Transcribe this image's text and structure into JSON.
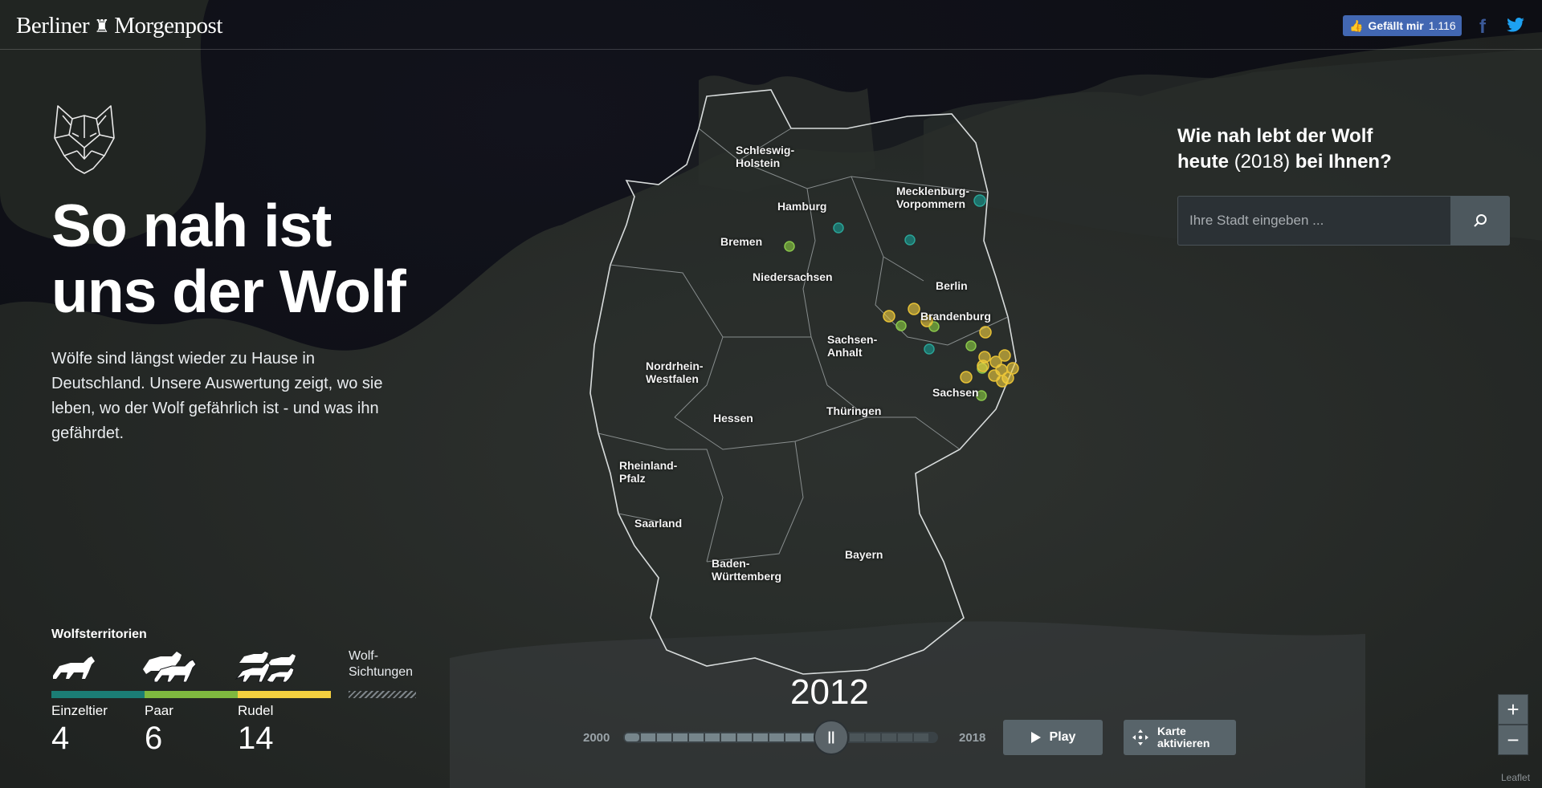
{
  "header": {
    "brand": "Berliner Morgenpost",
    "brand_left": "Berliner",
    "brand_right": "Morgenpost",
    "fb_like_label": "Gefällt mir",
    "fb_like_count": "1.116",
    "facebook_icon": "facebook-icon",
    "twitter_icon": "twitter-icon"
  },
  "intro": {
    "headline_line1": "So nah ist",
    "headline_line2": "uns der Wolf",
    "text": "Wölfe sind längst wieder zu Hause in Deutschland. Unsere Auswertung zeigt, wo sie leben, wo der Wolf gefährlich ist - und was ihn gefährdet."
  },
  "search": {
    "title_part1": "Wie nah lebt der Wolf",
    "title_part2": "heute",
    "title_year": "(2018)",
    "title_part3": "bei Ihnen?",
    "placeholder": "Ihre Stadt eingeben ..."
  },
  "map": {
    "states": [
      {
        "name": "Schleswig-\nHolstein"
      },
      {
        "name": "Hamburg"
      },
      {
        "name": "Mecklenburg-\nVorpommern"
      },
      {
        "name": "Bremen"
      },
      {
        "name": "Niedersachsen"
      },
      {
        "name": "Berlin"
      },
      {
        "name": "Brandenburg"
      },
      {
        "name": "Sachsen-\nAnhalt"
      },
      {
        "name": "Nordrhein-\nWestfalen"
      },
      {
        "name": "Sachsen"
      },
      {
        "name": "Hessen"
      },
      {
        "name": "Thüringen"
      },
      {
        "name": "Rheinland-\nPfalz"
      },
      {
        "name": "Saarland"
      },
      {
        "name": "Baden-\nWürttemberg"
      },
      {
        "name": "Bayern"
      }
    ],
    "colors": {
      "einzeltier": "#1b7d75",
      "paar": "#7fb93f",
      "rudel": "#f4d03f"
    }
  },
  "legend": {
    "title": "Wolfsterritorien",
    "einzeltier_label": "Einzeltier",
    "einzeltier_count": "4",
    "paar_label": "Paar",
    "paar_count": "6",
    "rudel_label": "Rudel",
    "rudel_count": "14",
    "sightings_label": "Wolf-\nSichtungen"
  },
  "timeline": {
    "year": "2012",
    "min_year": "2000",
    "max_year": "2018",
    "handle_glyph": "||",
    "play_label": "Play",
    "activate_label": "Karte aktivieren"
  },
  "zoom": {
    "in": "+",
    "out": "−"
  },
  "attribution": "Leaflet"
}
